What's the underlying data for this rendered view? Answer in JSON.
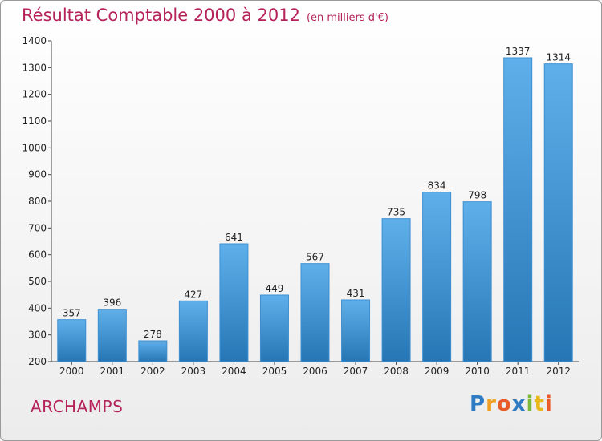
{
  "chart_data": {
    "type": "bar",
    "title": "Résultat Comptable 2000 à 2012",
    "unit": "(en milliers d'€)",
    "categories": [
      "2000",
      "2001",
      "2002",
      "2003",
      "2004",
      "2005",
      "2006",
      "2007",
      "2008",
      "2009",
      "2010",
      "2011",
      "2012"
    ],
    "values": [
      357,
      396,
      278,
      427,
      641,
      449,
      567,
      431,
      735,
      834,
      798,
      1337,
      1314
    ],
    "ylim": [
      200,
      1400
    ],
    "yticks": [
      200,
      300,
      400,
      500,
      600,
      700,
      800,
      900,
      1000,
      1100,
      1200,
      1300,
      1400
    ],
    "grid": false,
    "bar_color_top": "#5fb0ea",
    "bar_color_bottom": "#2676b5"
  },
  "footer": {
    "commune": "ARCHAMPS",
    "logo_letters": [
      {
        "ch": "P",
        "color": "#2e7bc4"
      },
      {
        "ch": "r",
        "color": "#f0a020"
      },
      {
        "ch": "o",
        "color": "#e85a2a"
      },
      {
        "ch": "x",
        "color": "#2e7bc4"
      },
      {
        "ch": "i",
        "color": "#7cb83a"
      },
      {
        "ch": "t",
        "color": "#e8b81a"
      },
      {
        "ch": "i",
        "color": "#e85a2a"
      }
    ]
  }
}
